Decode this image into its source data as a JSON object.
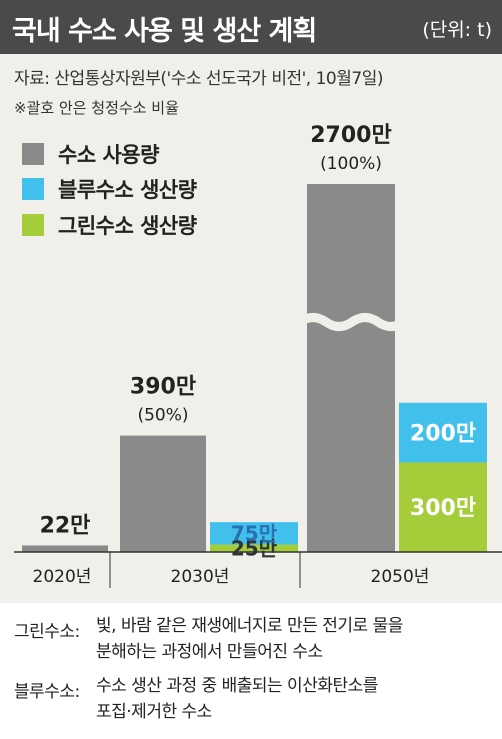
{
  "header": {
    "title": "국내 수소 사용 및 생산 계획",
    "unit": "(단위: t)"
  },
  "source": "자료: 산업통상자원부('수소 선도국가 비전', 10월7일)",
  "note": "※괄호 안은 청정수소 비율",
  "colors": {
    "usage": "#8a8a8a",
    "blue": "#42c0ec",
    "green": "#a4cd39",
    "header_bg": "#4a4a4a",
    "background": "#f1efe9"
  },
  "chart_data": {
    "type": "bar",
    "categories": [
      "2020년",
      "2030년",
      "2050년"
    ],
    "series": [
      {
        "name": "수소 사용량",
        "values": [
          22,
          390,
          2700
        ]
      },
      {
        "name": "블루수소 생산량",
        "values": [
          null,
          75,
          200
        ]
      },
      {
        "name": "그린수소 생산량",
        "values": [
          null,
          25,
          300
        ]
      }
    ],
    "bar_labels": {
      "usage": [
        "22만",
        "390만",
        "2700만"
      ],
      "usage_ratio": [
        "",
        "(50%)",
        "(100%)"
      ],
      "blue": [
        "",
        "75만",
        "200만"
      ],
      "green": [
        "",
        "25만",
        "300만"
      ]
    },
    "unit": "만 t",
    "axis_break": "2050 사용량 막대 중간 생략 표시"
  },
  "legend": [
    {
      "label": "수소 사용량",
      "color": "#8a8a8a"
    },
    {
      "label": "블루수소 생산량",
      "color": "#42c0ec"
    },
    {
      "label": "그린수소 생산량",
      "color": "#a4cd39"
    }
  ],
  "footnotes": [
    {
      "term": "그린수소:",
      "line1": "빛, 바람 같은 재생에너지로 만든 전기로 물을",
      "line2": "분해하는 과정에서 만들어진 수소"
    },
    {
      "term": "블루수소:",
      "line1": "수소 생산 과정 중 배출되는 이산화탄소를",
      "line2": "포집·제거한 수소"
    }
  ]
}
